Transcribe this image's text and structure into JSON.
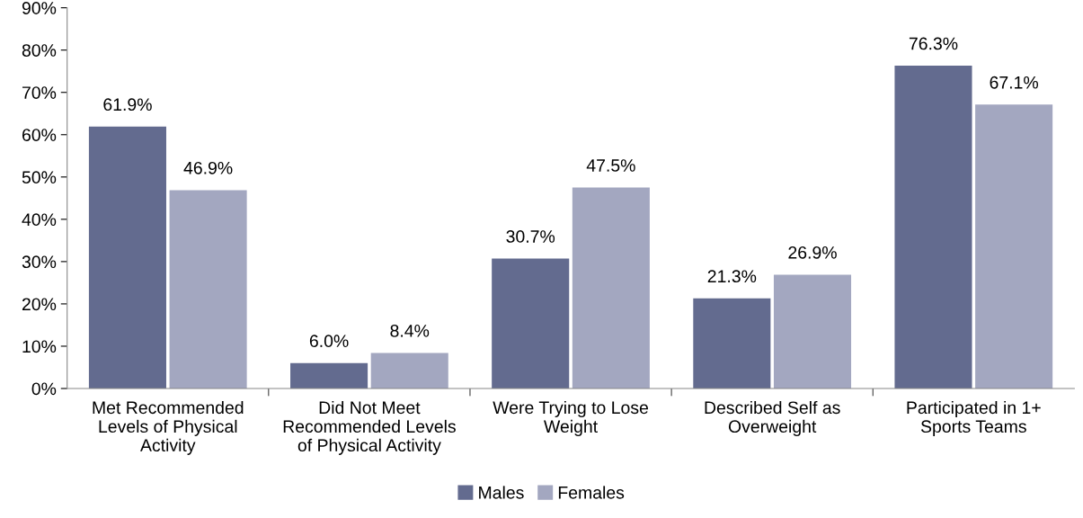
{
  "chart_data": {
    "type": "bar",
    "categories": [
      "Met Recommended\nLevels of Physical\nActivity",
      "Did Not Meet\nRecommended Levels\nof Physical Activity",
      "Were Trying to Lose\nWeight",
      "Described Self as\nOverweight",
      "Participated in 1+\nSports Teams"
    ],
    "series": [
      {
        "name": "Males",
        "color": "#636b8f",
        "values": [
          61.9,
          6.0,
          30.7,
          21.3,
          76.3
        ],
        "value_labels": [
          "61.9%",
          "6.0%",
          "30.7%",
          "21.3%",
          "76.3%"
        ]
      },
      {
        "name": "Females",
        "color": "#a3a7c0",
        "values": [
          46.9,
          8.4,
          47.5,
          26.9,
          67.1
        ],
        "value_labels": [
          "46.9%",
          "8.4%",
          "47.5%",
          "26.9%",
          "67.1%"
        ]
      }
    ],
    "ylim": [
      0,
      90
    ],
    "yticks": [
      {
        "value": 0,
        "label": "0%"
      },
      {
        "value": 10,
        "label": "10%"
      },
      {
        "value": 20,
        "label": "20%"
      },
      {
        "value": 30,
        "label": "30%"
      },
      {
        "value": 40,
        "label": "40%"
      },
      {
        "value": 50,
        "label": "50%"
      },
      {
        "value": 60,
        "label": "60%"
      },
      {
        "value": 70,
        "label": "70%"
      },
      {
        "value": 80,
        "label": "80%"
      },
      {
        "value": 90,
        "label": "90%"
      }
    ],
    "grid": false,
    "legend": "bottom"
  }
}
